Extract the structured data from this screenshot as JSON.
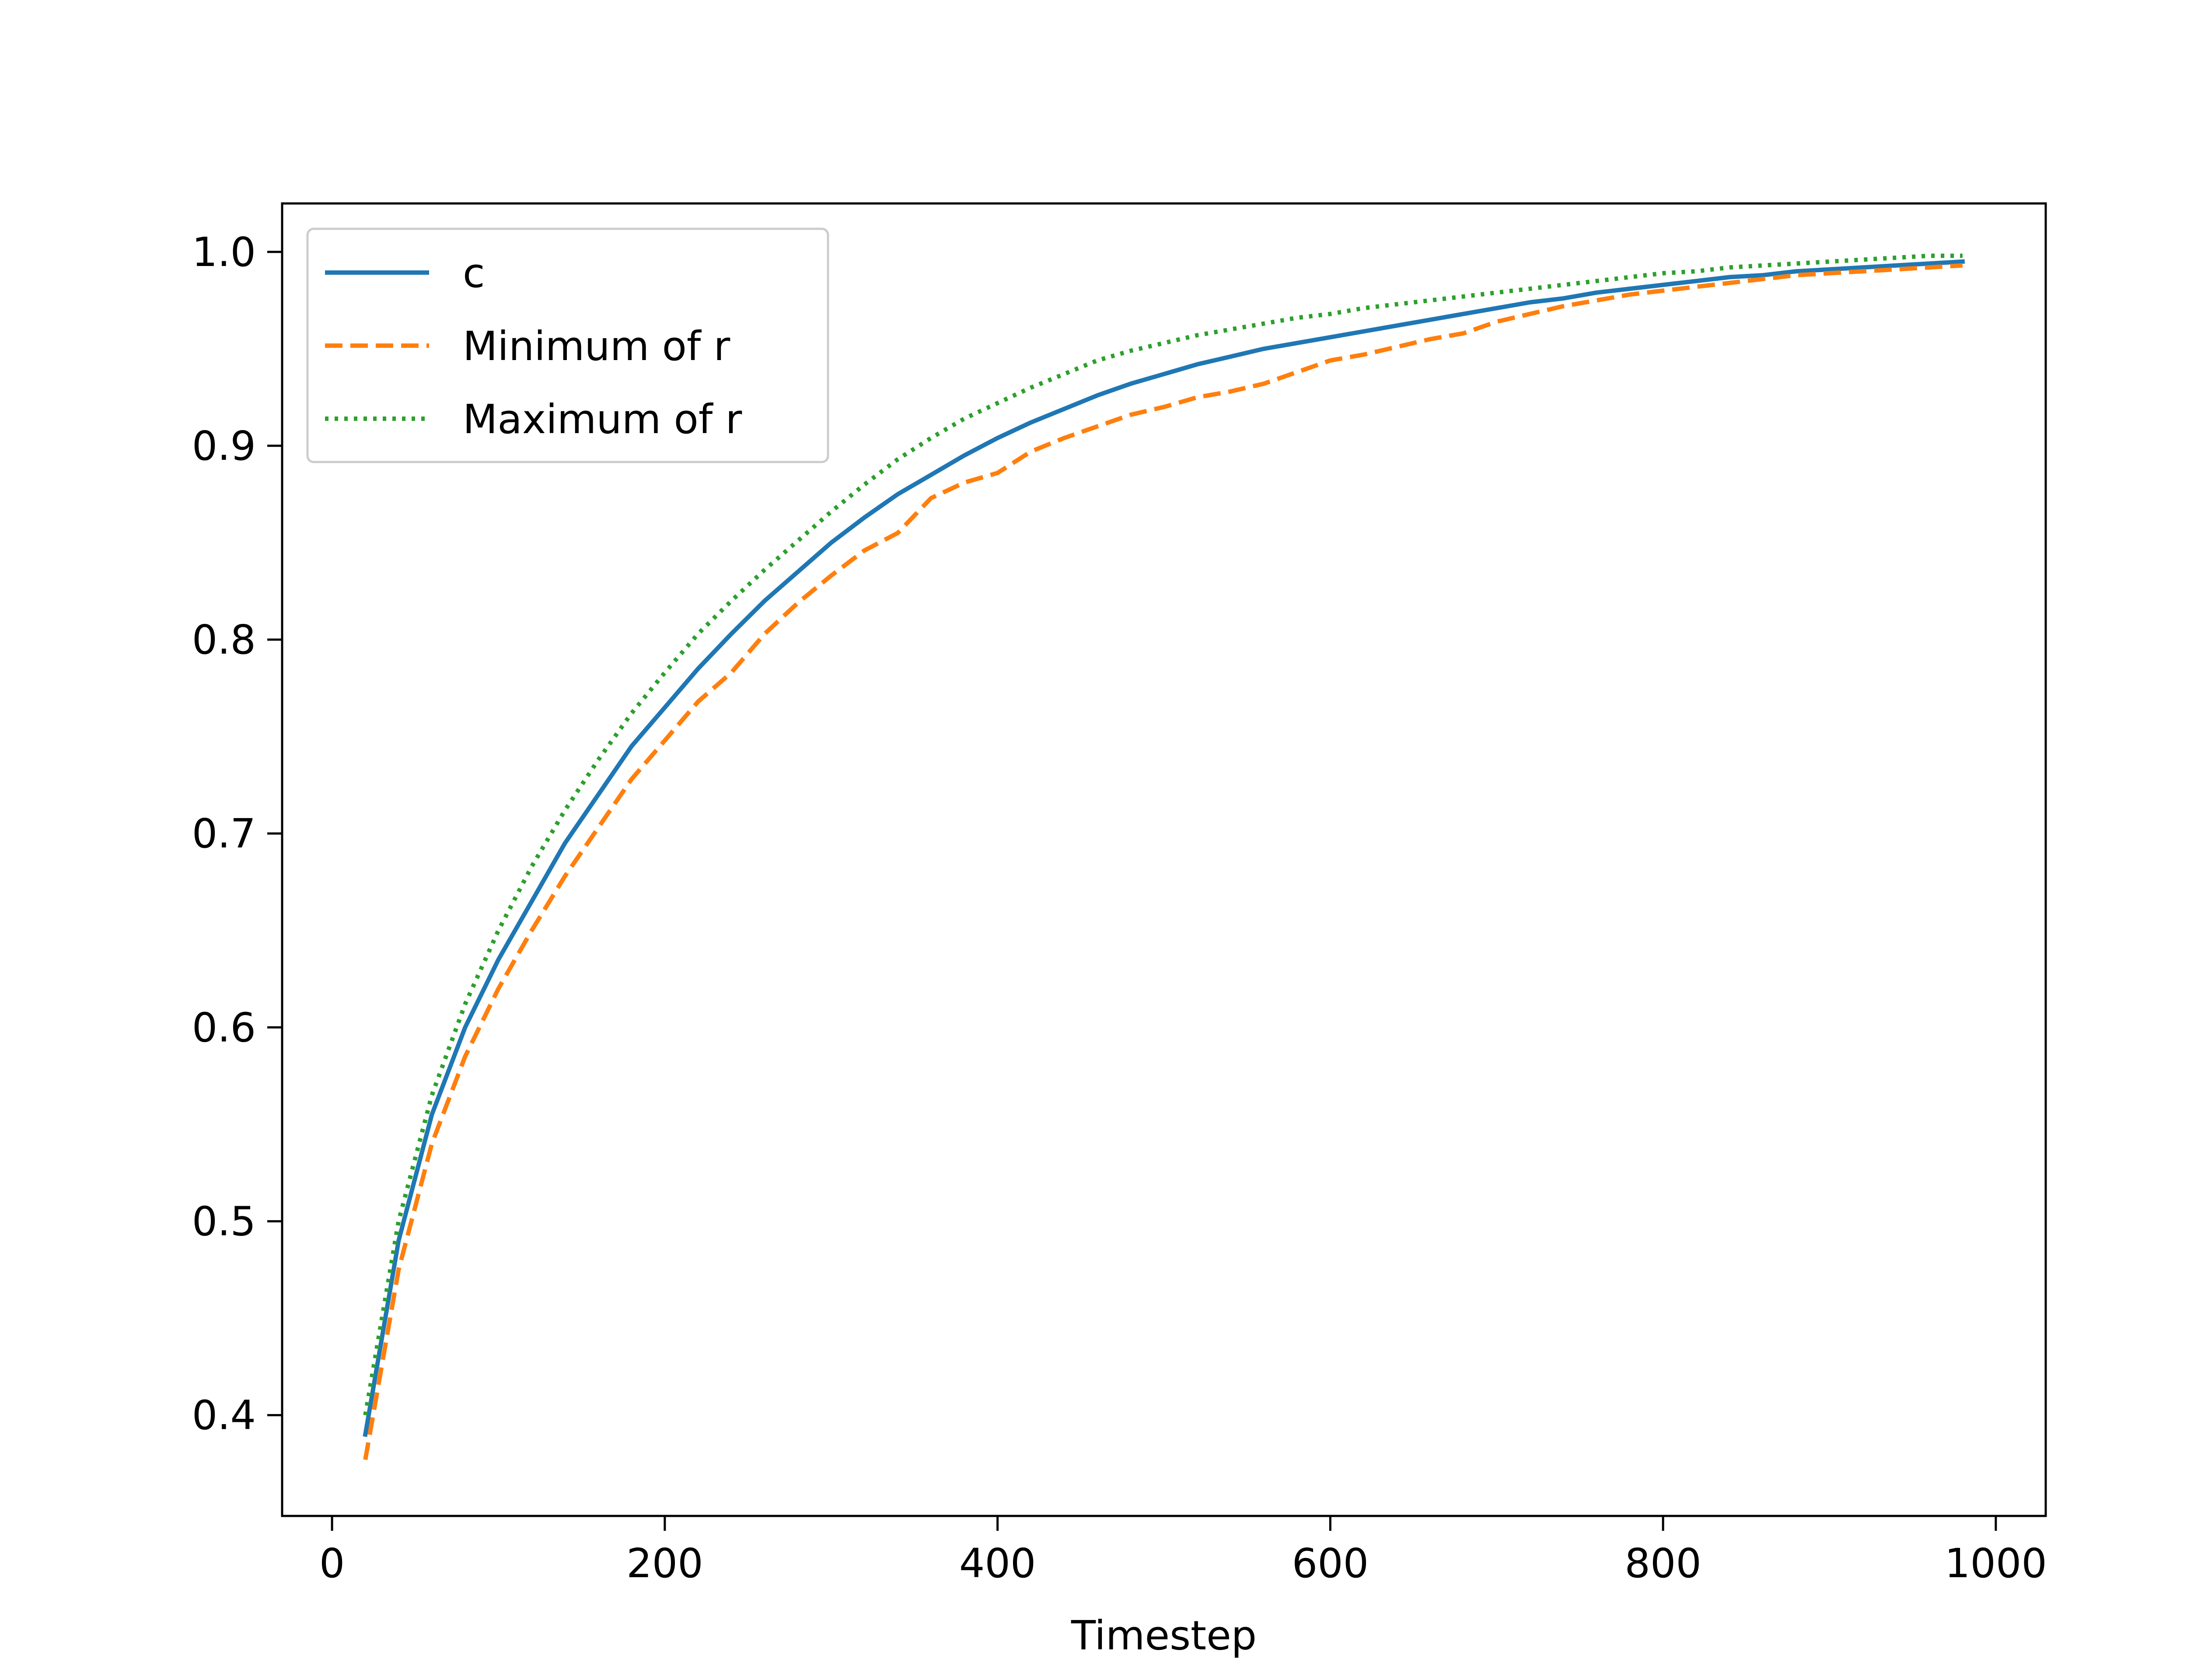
{
  "chart_data": {
    "type": "line",
    "title": "",
    "xlabel": "Timestep",
    "ylabel": "",
    "xlim": [
      -30,
      1030
    ],
    "ylim": [
      0.348,
      1.025
    ],
    "grid": false,
    "legend_position": "top-left",
    "x_ticks": [
      0,
      200,
      400,
      600,
      800,
      1000
    ],
    "x_tick_labels": [
      "0",
      "200",
      "400",
      "600",
      "800",
      "1000"
    ],
    "y_ticks": [
      0.4,
      0.5,
      0.6,
      0.7,
      0.8,
      0.9,
      1.0
    ],
    "y_tick_labels": [
      "0.4",
      "0.5",
      "0.6",
      "0.7",
      "0.8",
      "0.9",
      "1.0"
    ],
    "x": [
      20,
      40,
      60,
      80,
      100,
      120,
      140,
      160,
      180,
      200,
      220,
      240,
      260,
      280,
      300,
      320,
      340,
      360,
      380,
      400,
      420,
      440,
      460,
      480,
      500,
      520,
      540,
      560,
      580,
      600,
      620,
      640,
      660,
      680,
      700,
      720,
      740,
      760,
      780,
      800,
      820,
      840,
      860,
      880,
      900,
      920,
      940,
      960,
      980
    ],
    "series": [
      {
        "name": "c",
        "color": "#1f77b4",
        "style": "solid",
        "values": [
          0.39,
          0.49,
          0.555,
          0.6,
          0.635,
          0.665,
          0.695,
          0.72,
          0.745,
          0.765,
          0.785,
          0.803,
          0.82,
          0.835,
          0.85,
          0.863,
          0.875,
          0.885,
          0.895,
          0.904,
          0.912,
          0.919,
          0.926,
          0.932,
          0.937,
          0.942,
          0.946,
          0.95,
          0.953,
          0.956,
          0.959,
          0.962,
          0.965,
          0.968,
          0.971,
          0.974,
          0.976,
          0.979,
          0.981,
          0.983,
          0.985,
          0.987,
          0.988,
          0.99,
          0.991,
          0.992,
          0.993,
          0.994,
          0.995
        ]
      },
      {
        "name": "Minimum of r",
        "color": "#ff7f0e",
        "style": "dashed",
        "values": [
          0.377,
          0.475,
          0.54,
          0.585,
          0.62,
          0.65,
          0.678,
          0.703,
          0.728,
          0.748,
          0.768,
          0.783,
          0.803,
          0.819,
          0.833,
          0.846,
          0.855,
          0.873,
          0.881,
          0.886,
          0.897,
          0.904,
          0.91,
          0.916,
          0.92,
          0.925,
          0.928,
          0.932,
          0.938,
          0.944,
          0.947,
          0.951,
          0.955,
          0.958,
          0.964,
          0.968,
          0.972,
          0.975,
          0.978,
          0.98,
          0.982,
          0.984,
          0.986,
          0.988,
          0.989,
          0.99,
          0.991,
          0.992,
          0.993
        ]
      },
      {
        "name": "Maximum of r",
        "color": "#2ca02c",
        "style": "dotted",
        "values": [
          0.4,
          0.5,
          0.565,
          0.612,
          0.65,
          0.683,
          0.712,
          0.738,
          0.762,
          0.783,
          0.803,
          0.82,
          0.836,
          0.851,
          0.866,
          0.88,
          0.893,
          0.904,
          0.914,
          0.922,
          0.93,
          0.937,
          0.944,
          0.949,
          0.953,
          0.957,
          0.96,
          0.963,
          0.966,
          0.968,
          0.971,
          0.973,
          0.975,
          0.977,
          0.979,
          0.981,
          0.983,
          0.985,
          0.987,
          0.989,
          0.99,
          0.992,
          0.993,
          0.994,
          0.995,
          0.996,
          0.997,
          0.998,
          0.998
        ]
      }
    ]
  }
}
